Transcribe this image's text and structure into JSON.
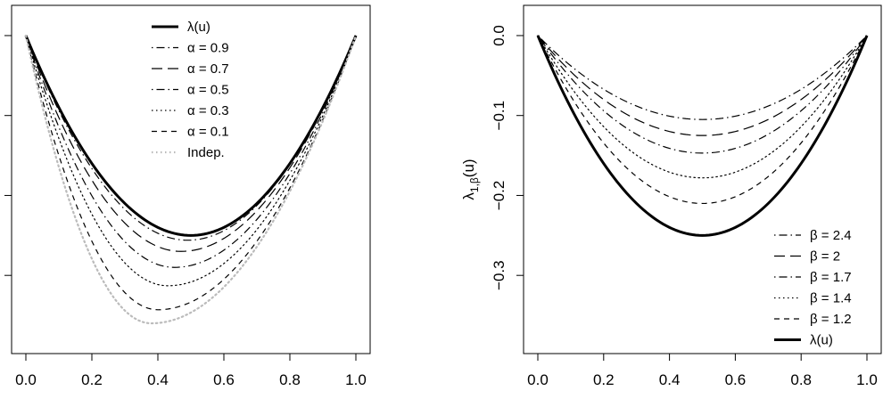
{
  "chart_data": [
    {
      "type": "line",
      "title": "",
      "xlabel": "",
      "ylabel": "",
      "xlim": [
        0,
        1
      ],
      "ylim": [
        -0.38,
        0.02
      ],
      "x_ticks": [
        "0.0",
        "0.2",
        "0.4",
        "0.6",
        "0.8",
        "1.0"
      ],
      "y_ticks": [
        0,
        -0.1,
        -0.2,
        -0.3
      ],
      "y_tick_labels": [
        "",
        "",
        "",
        ""
      ],
      "legend_position": "top-center",
      "series": [
        {
          "name": "λ(u)",
          "style": "solid",
          "color": "#000000",
          "width": 3.0,
          "min_x": 0.5,
          "min_y": -0.25
        },
        {
          "name": "α = 0.9",
          "style": "dotdash",
          "color": "#000000",
          "width": 1.2,
          "min_x": 0.49,
          "min_y": -0.256
        },
        {
          "name": "α = 0.7",
          "style": "longdash",
          "color": "#000000",
          "width": 1.2,
          "min_x": 0.47,
          "min_y": -0.27
        },
        {
          "name": "α = 0.5",
          "style": "dotdash",
          "color": "#000000",
          "width": 1.2,
          "min_x": 0.45,
          "min_y": -0.29
        },
        {
          "name": "α = 0.3",
          "style": "dotted",
          "color": "#000000",
          "width": 1.2,
          "min_x": 0.43,
          "min_y": -0.313
        },
        {
          "name": "α = 0.1",
          "style": "dashed",
          "color": "#000000",
          "width": 1.2,
          "min_x": 0.4,
          "min_y": -0.343
        },
        {
          "name": "Indep.",
          "style": "dotted",
          "color": "#bbbbbb",
          "width": 2.2,
          "min_x": 0.38,
          "min_y": -0.36
        }
      ]
    },
    {
      "type": "line",
      "title": "",
      "xlabel": "",
      "ylabel": "λ1,β(u)",
      "ylabel_main": "λ",
      "ylabel_sub": "1,β",
      "ylabel_suffix": "(u)",
      "xlim": [
        0,
        1
      ],
      "ylim": [
        -0.38,
        0.02
      ],
      "x_ticks": [
        "0.0",
        "0.2",
        "0.4",
        "0.6",
        "0.8",
        "1.0"
      ],
      "y_ticks": [
        0,
        -0.1,
        -0.2,
        -0.3
      ],
      "y_tick_labels": [
        "0.0",
        "−0.1",
        "−0.2",
        "−0.3"
      ],
      "legend_position": "bottom-right",
      "series": [
        {
          "name": "β = 2.4",
          "style": "dotdash",
          "color": "#000000",
          "width": 1.2,
          "min_x": 0.5,
          "min_y": -0.105
        },
        {
          "name": "β = 2",
          "style": "longdash",
          "color": "#000000",
          "width": 1.2,
          "min_x": 0.5,
          "min_y": -0.125
        },
        {
          "name": "β = 1.7",
          "style": "dotdash",
          "color": "#000000",
          "width": 1.2,
          "min_x": 0.5,
          "min_y": -0.147
        },
        {
          "name": "β = 1.4",
          "style": "dotted",
          "color": "#000000",
          "width": 1.2,
          "min_x": 0.5,
          "min_y": -0.178
        },
        {
          "name": "β = 1.2",
          "style": "dashed",
          "color": "#000000",
          "width": 1.2,
          "min_x": 0.5,
          "min_y": -0.21
        },
        {
          "name": "λ(u)",
          "style": "solid",
          "color": "#000000",
          "width": 3.0,
          "min_x": 0.5,
          "min_y": -0.25
        }
      ]
    }
  ]
}
